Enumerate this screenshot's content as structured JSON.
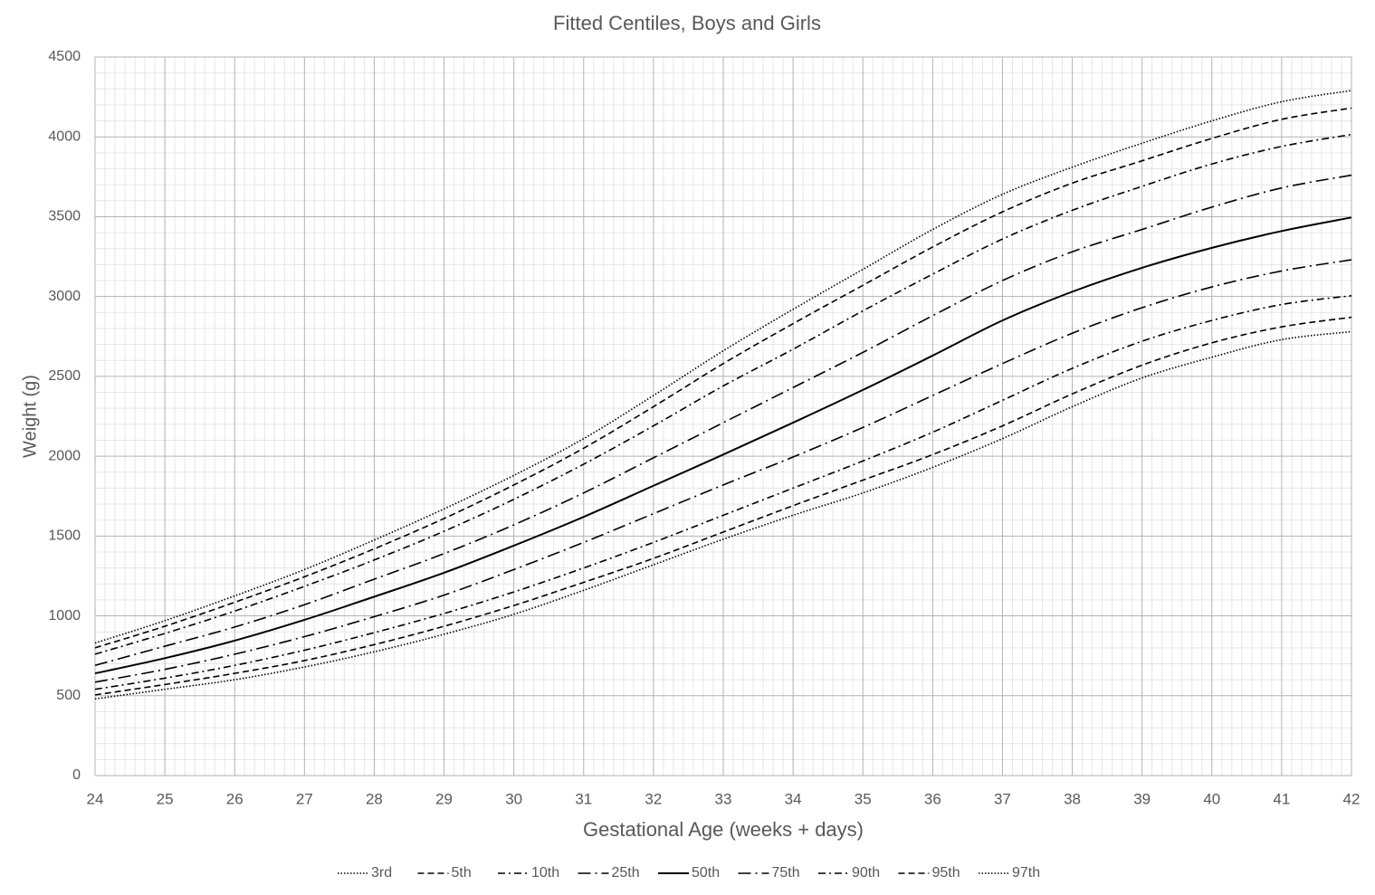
{
  "chart_data": {
    "type": "line",
    "title": "Fitted Centiles, Boys and Girls",
    "x_label": "Gestational Age (weeks + days)",
    "y_label": "Weight (g)",
    "x": [
      24,
      25,
      26,
      27,
      28,
      29,
      30,
      31,
      32,
      33,
      34,
      35,
      36,
      37,
      38,
      39,
      40,
      41,
      42
    ],
    "xlim": [
      24,
      42
    ],
    "xticks": [
      24,
      25,
      26,
      27,
      28,
      29,
      30,
      31,
      32,
      33,
      34,
      35,
      36,
      37,
      38,
      39,
      40,
      41,
      42
    ],
    "ylim": [
      0,
      4500
    ],
    "yticks": [
      0,
      500,
      1000,
      1500,
      2000,
      2500,
      3000,
      3500,
      4000,
      4500
    ],
    "grid": true,
    "minor_grid": true,
    "legend": "bottom",
    "series": [
      {
        "name": "3rd",
        "color": "#000000",
        "dash": "dotted",
        "values": [
          480,
          540,
          600,
          680,
          775,
          885,
          1010,
          1160,
          1320,
          1480,
          1630,
          1770,
          1930,
          2110,
          2310,
          2490,
          2620,
          2730,
          2780
        ]
      },
      {
        "name": "5th",
        "color": "#000000",
        "dash": "dashed",
        "values": [
          505,
          570,
          640,
          720,
          820,
          935,
          1065,
          1210,
          1360,
          1525,
          1690,
          1850,
          2010,
          2190,
          2390,
          2570,
          2710,
          2810,
          2870
        ]
      },
      {
        "name": "10th",
        "color": "#000000",
        "dash": "dash-dot",
        "values": [
          540,
          610,
          690,
          785,
          895,
          1015,
          1150,
          1300,
          1460,
          1630,
          1800,
          1970,
          2150,
          2350,
          2550,
          2720,
          2850,
          2950,
          3005
        ]
      },
      {
        "name": "25th",
        "color": "#000000",
        "dash": "long-dash-dot",
        "values": [
          585,
          665,
          760,
          870,
          995,
          1130,
          1290,
          1460,
          1640,
          1820,
          1995,
          2180,
          2380,
          2580,
          2770,
          2930,
          3060,
          3160,
          3230
        ]
      },
      {
        "name": "50th",
        "color": "#000000",
        "dash": "solid",
        "values": [
          640,
          735,
          845,
          975,
          1120,
          1270,
          1440,
          1620,
          1815,
          2010,
          2210,
          2415,
          2630,
          2850,
          3030,
          3180,
          3305,
          3410,
          3495
        ]
      },
      {
        "name": "75th",
        "color": "#000000",
        "dash": "long-dash-dot",
        "values": [
          690,
          810,
          930,
          1070,
          1230,
          1390,
          1570,
          1770,
          1990,
          2210,
          2430,
          2650,
          2880,
          3100,
          3280,
          3420,
          3560,
          3680,
          3760
        ]
      },
      {
        "name": "90th",
        "color": "#000000",
        "dash": "dash-dot",
        "values": [
          760,
          890,
          1030,
          1185,
          1350,
          1530,
          1730,
          1950,
          2190,
          2440,
          2670,
          2910,
          3140,
          3360,
          3540,
          3690,
          3830,
          3940,
          4015
        ]
      },
      {
        "name": "95th",
        "color": "#000000",
        "dash": "dashed",
        "values": [
          800,
          935,
          1085,
          1245,
          1420,
          1610,
          1820,
          2050,
          2310,
          2580,
          2830,
          3070,
          3310,
          3530,
          3710,
          3850,
          3990,
          4110,
          4180
        ]
      },
      {
        "name": "97th",
        "color": "#000000",
        "dash": "dotted",
        "values": [
          830,
          970,
          1125,
          1290,
          1475,
          1670,
          1880,
          2110,
          2380,
          2660,
          2920,
          3170,
          3420,
          3640,
          3810,
          3960,
          4100,
          4220,
          4290
        ]
      }
    ]
  }
}
